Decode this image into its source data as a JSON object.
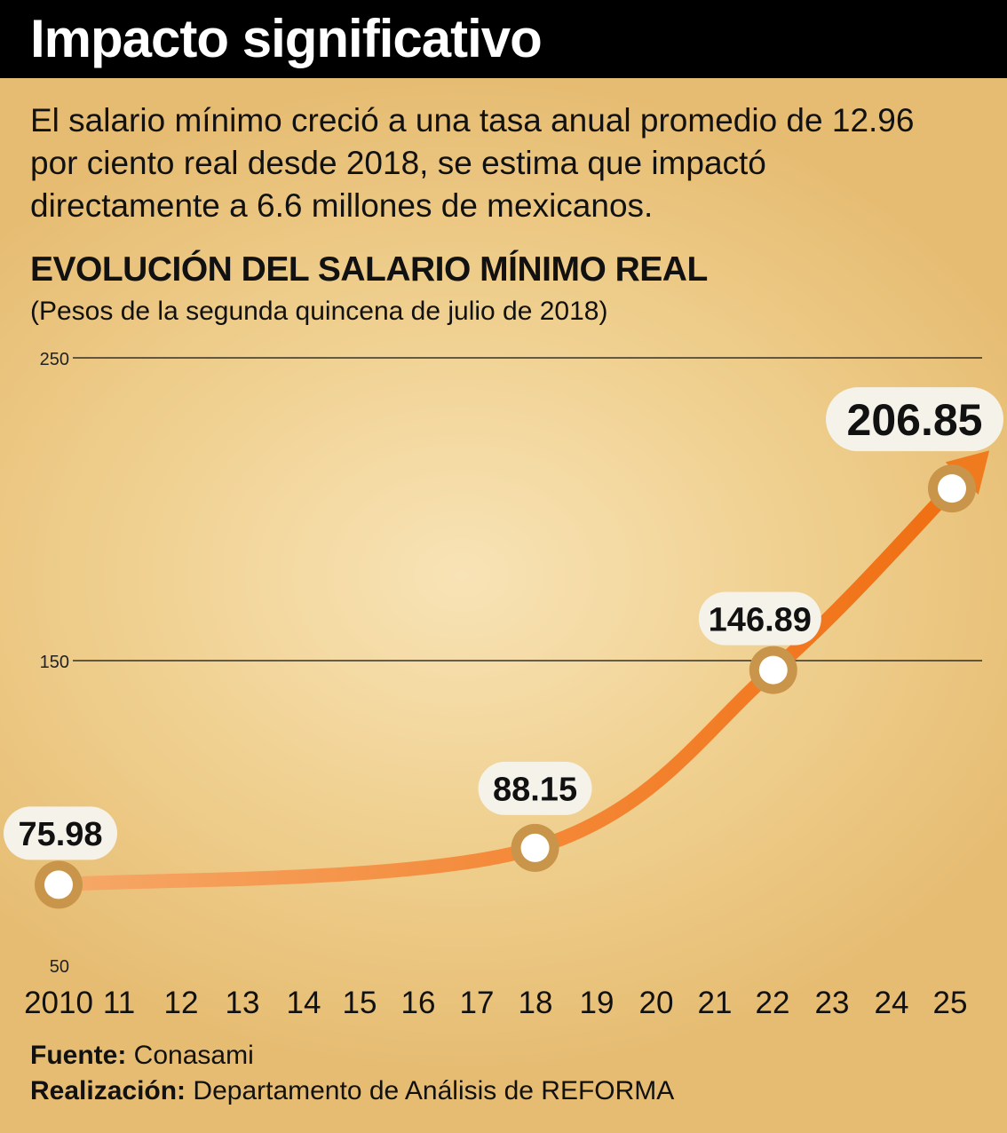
{
  "header": {
    "title": "Impacto significativo",
    "description": "El salario mínimo creció a una tasa anual promedio de 12.96 por ciento real desde 2018, se estima que impactó directamente a 6.6 millones de mexicanos."
  },
  "chart_data": {
    "type": "line",
    "title": "EVOLUCIÓN DEL SALARIO MÍNIMO REAL",
    "subtitle": "(Pesos de la segunda quincena de julio de 2018)",
    "x_tick_labels": [
      "2010",
      "11",
      "12",
      "13",
      "14",
      "15",
      "16",
      "17",
      "18",
      "19",
      "20",
      "21",
      "22",
      "23",
      "24",
      "25"
    ],
    "y_ticks": [
      50,
      150,
      250
    ],
    "ylim": [
      50,
      250
    ],
    "grid": true,
    "series": [
      {
        "x": [
          2010,
          2018,
          2022,
          2025
        ],
        "values": [
          75.98,
          88.15,
          146.89,
          206.85
        ],
        "labels": [
          "75.98",
          "88.15",
          "146.89",
          "206.85"
        ]
      }
    ],
    "line_color": "#f07a1e",
    "marker_ring_color": "#c8954a"
  },
  "footer": {
    "source_label": "Fuente:",
    "source_value": "Conasami",
    "credit_label": "Realización:",
    "credit_value": "Departamento de Análisis de REFORMA"
  }
}
